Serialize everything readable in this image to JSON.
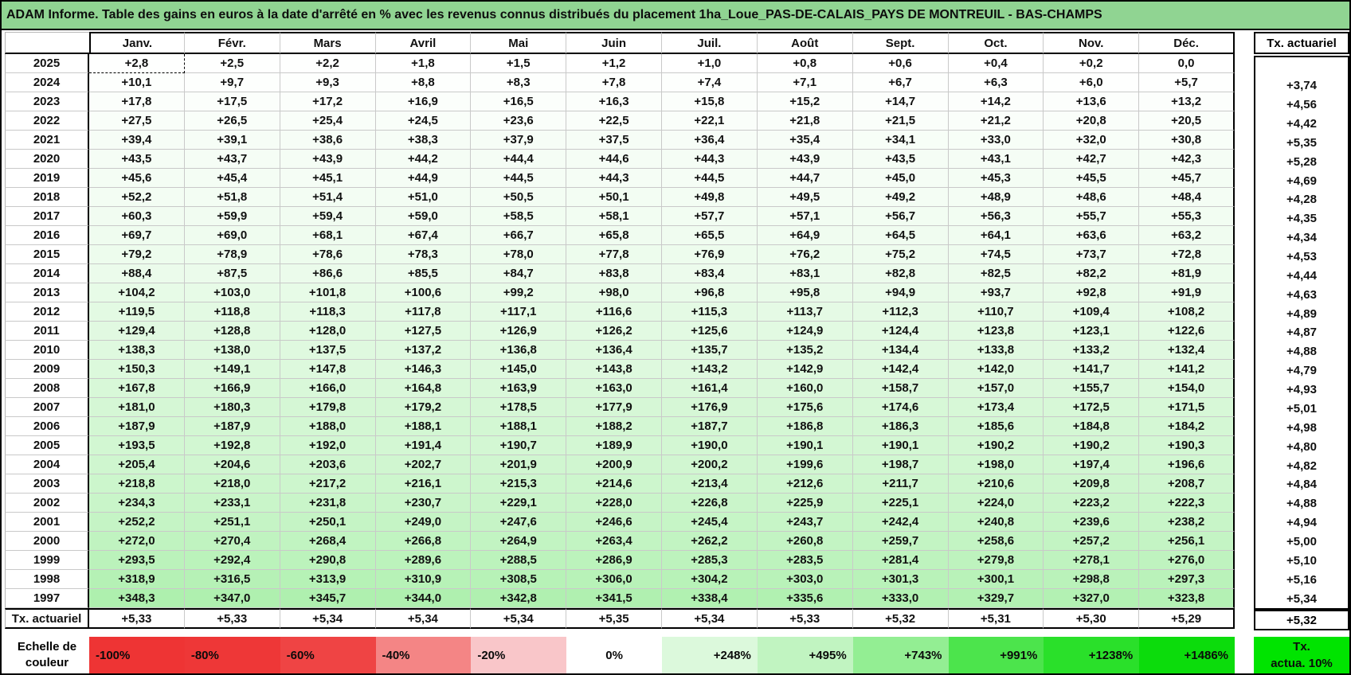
{
  "title": "ADAM Informe. Table des gains en euros à la date d'arrêté en % avec les revenus connus distribués du placement 1ha_Loue_PAS-DE-CALAIS_PAYS DE MONTREUIL - BAS-CHAMPS",
  "colors": {
    "title_bg": "#90d492",
    "grid_line": "#c9c9c9",
    "positive_max_green": "#00d000",
    "scale_red": "#ee3434",
    "tx_green": "#00e400"
  },
  "table": {
    "months": [
      "Janv.",
      "Févr.",
      "Mars",
      "Avril",
      "Mai",
      "Juin",
      "Juil.",
      "Août",
      "Sept.",
      "Oct.",
      "Nov.",
      "Déc."
    ],
    "tx_header": "Tx. actuariel",
    "rows": [
      {
        "year": "2025",
        "values": [
          "+2,8",
          "+2,5",
          "+2,2",
          "+1,8",
          "+1,5",
          "+1,2",
          "+1,0",
          "+0,8",
          "+0,6",
          "+0,4",
          "+0,2",
          "0,0"
        ],
        "tx": ""
      },
      {
        "year": "2024",
        "values": [
          "+10,1",
          "+9,7",
          "+9,3",
          "+8,8",
          "+8,3",
          "+7,8",
          "+7,4",
          "+7,1",
          "+6,7",
          "+6,3",
          "+6,0",
          "+5,7"
        ],
        "tx": "+3,74"
      },
      {
        "year": "2023",
        "values": [
          "+17,8",
          "+17,5",
          "+17,2",
          "+16,9",
          "+16,5",
          "+16,3",
          "+15,8",
          "+15,2",
          "+14,7",
          "+14,2",
          "+13,6",
          "+13,2"
        ],
        "tx": "+4,56"
      },
      {
        "year": "2022",
        "values": [
          "+27,5",
          "+26,5",
          "+25,4",
          "+24,5",
          "+23,6",
          "+22,5",
          "+22,1",
          "+21,8",
          "+21,5",
          "+21,2",
          "+20,8",
          "+20,5"
        ],
        "tx": "+4,42"
      },
      {
        "year": "2021",
        "values": [
          "+39,4",
          "+39,1",
          "+38,6",
          "+38,3",
          "+37,9",
          "+37,5",
          "+36,4",
          "+35,4",
          "+34,1",
          "+33,0",
          "+32,0",
          "+30,8"
        ],
        "tx": "+5,35"
      },
      {
        "year": "2020",
        "values": [
          "+43,5",
          "+43,7",
          "+43,9",
          "+44,2",
          "+44,4",
          "+44,6",
          "+44,3",
          "+43,9",
          "+43,5",
          "+43,1",
          "+42,7",
          "+42,3"
        ],
        "tx": "+5,28"
      },
      {
        "year": "2019",
        "values": [
          "+45,6",
          "+45,4",
          "+45,1",
          "+44,9",
          "+44,5",
          "+44,3",
          "+44,5",
          "+44,7",
          "+45,0",
          "+45,3",
          "+45,5",
          "+45,7"
        ],
        "tx": "+4,69"
      },
      {
        "year": "2018",
        "values": [
          "+52,2",
          "+51,8",
          "+51,4",
          "+51,0",
          "+50,5",
          "+50,1",
          "+49,8",
          "+49,5",
          "+49,2",
          "+48,9",
          "+48,6",
          "+48,4"
        ],
        "tx": "+4,28"
      },
      {
        "year": "2017",
        "values": [
          "+60,3",
          "+59,9",
          "+59,4",
          "+59,0",
          "+58,5",
          "+58,1",
          "+57,7",
          "+57,1",
          "+56,7",
          "+56,3",
          "+55,7",
          "+55,3"
        ],
        "tx": "+4,35"
      },
      {
        "year": "2016",
        "values": [
          "+69,7",
          "+69,0",
          "+68,1",
          "+67,4",
          "+66,7",
          "+65,8",
          "+65,5",
          "+64,9",
          "+64,5",
          "+64,1",
          "+63,6",
          "+63,2"
        ],
        "tx": "+4,34"
      },
      {
        "year": "2015",
        "values": [
          "+79,2",
          "+78,9",
          "+78,6",
          "+78,3",
          "+78,0",
          "+77,8",
          "+76,9",
          "+76,2",
          "+75,2",
          "+74,5",
          "+73,7",
          "+72,8"
        ],
        "tx": "+4,53"
      },
      {
        "year": "2014",
        "values": [
          "+88,4",
          "+87,5",
          "+86,6",
          "+85,5",
          "+84,7",
          "+83,8",
          "+83,4",
          "+83,1",
          "+82,8",
          "+82,5",
          "+82,2",
          "+81,9"
        ],
        "tx": "+4,44"
      },
      {
        "year": "2013",
        "values": [
          "+104,2",
          "+103,0",
          "+101,8",
          "+100,6",
          "+99,2",
          "+98,0",
          "+96,8",
          "+95,8",
          "+94,9",
          "+93,7",
          "+92,8",
          "+91,9"
        ],
        "tx": "+4,63"
      },
      {
        "year": "2012",
        "values": [
          "+119,5",
          "+118,8",
          "+118,3",
          "+117,8",
          "+117,1",
          "+116,6",
          "+115,3",
          "+113,7",
          "+112,3",
          "+110,7",
          "+109,4",
          "+108,2"
        ],
        "tx": "+4,89"
      },
      {
        "year": "2011",
        "values": [
          "+129,4",
          "+128,8",
          "+128,0",
          "+127,5",
          "+126,9",
          "+126,2",
          "+125,6",
          "+124,9",
          "+124,4",
          "+123,8",
          "+123,1",
          "+122,6"
        ],
        "tx": "+4,87"
      },
      {
        "year": "2010",
        "values": [
          "+138,3",
          "+138,0",
          "+137,5",
          "+137,2",
          "+136,8",
          "+136,4",
          "+135,7",
          "+135,2",
          "+134,4",
          "+133,8",
          "+133,2",
          "+132,4"
        ],
        "tx": "+4,88"
      },
      {
        "year": "2009",
        "values": [
          "+150,3",
          "+149,1",
          "+147,8",
          "+146,3",
          "+145,0",
          "+143,8",
          "+143,2",
          "+142,9",
          "+142,4",
          "+142,0",
          "+141,7",
          "+141,2"
        ],
        "tx": "+4,79"
      },
      {
        "year": "2008",
        "values": [
          "+167,8",
          "+166,9",
          "+166,0",
          "+164,8",
          "+163,9",
          "+163,0",
          "+161,4",
          "+160,0",
          "+158,7",
          "+157,0",
          "+155,7",
          "+154,0"
        ],
        "tx": "+4,93"
      },
      {
        "year": "2007",
        "values": [
          "+181,0",
          "+180,3",
          "+179,8",
          "+179,2",
          "+178,5",
          "+177,9",
          "+176,9",
          "+175,6",
          "+174,6",
          "+173,4",
          "+172,5",
          "+171,5"
        ],
        "tx": "+5,01"
      },
      {
        "year": "2006",
        "values": [
          "+187,9",
          "+187,9",
          "+188,0",
          "+188,1",
          "+188,1",
          "+188,2",
          "+187,7",
          "+186,8",
          "+186,3",
          "+185,6",
          "+184,8",
          "+184,2"
        ],
        "tx": "+4,98"
      },
      {
        "year": "2005",
        "values": [
          "+193,5",
          "+192,8",
          "+192,0",
          "+191,4",
          "+190,7",
          "+189,9",
          "+190,0",
          "+190,1",
          "+190,1",
          "+190,2",
          "+190,2",
          "+190,3"
        ],
        "tx": "+4,80"
      },
      {
        "year": "2004",
        "values": [
          "+205,4",
          "+204,6",
          "+203,6",
          "+202,7",
          "+201,9",
          "+200,9",
          "+200,2",
          "+199,6",
          "+198,7",
          "+198,0",
          "+197,4",
          "+196,6"
        ],
        "tx": "+4,82"
      },
      {
        "year": "2003",
        "values": [
          "+218,8",
          "+218,0",
          "+217,2",
          "+216,1",
          "+215,3",
          "+214,6",
          "+213,4",
          "+212,6",
          "+211,7",
          "+210,6",
          "+209,8",
          "+208,7"
        ],
        "tx": "+4,84"
      },
      {
        "year": "2002",
        "values": [
          "+234,3",
          "+233,1",
          "+231,8",
          "+230,7",
          "+229,1",
          "+228,0",
          "+226,8",
          "+225,9",
          "+225,1",
          "+224,0",
          "+223,2",
          "+222,3"
        ],
        "tx": "+4,88"
      },
      {
        "year": "2001",
        "values": [
          "+252,2",
          "+251,1",
          "+250,1",
          "+249,0",
          "+247,6",
          "+246,6",
          "+245,4",
          "+243,7",
          "+242,4",
          "+240,8",
          "+239,6",
          "+238,2"
        ],
        "tx": "+4,94"
      },
      {
        "year": "2000",
        "values": [
          "+272,0",
          "+270,4",
          "+268,4",
          "+266,8",
          "+264,9",
          "+263,4",
          "+262,2",
          "+260,8",
          "+259,7",
          "+258,6",
          "+257,2",
          "+256,1"
        ],
        "tx": "+5,00"
      },
      {
        "year": "1999",
        "values": [
          "+293,5",
          "+292,4",
          "+290,8",
          "+289,6",
          "+288,5",
          "+286,9",
          "+285,3",
          "+283,5",
          "+281,4",
          "+279,8",
          "+278,1",
          "+276,0"
        ],
        "tx": "+5,10"
      },
      {
        "year": "1998",
        "values": [
          "+318,9",
          "+316,5",
          "+313,9",
          "+310,9",
          "+308,5",
          "+306,0",
          "+304,2",
          "+303,0",
          "+301,3",
          "+300,1",
          "+298,8",
          "+297,3"
        ],
        "tx": "+5,16"
      },
      {
        "year": "1997",
        "values": [
          "+348,3",
          "+347,0",
          "+345,7",
          "+344,0",
          "+342,8",
          "+341,5",
          "+338,4",
          "+335,6",
          "+333,0",
          "+329,7",
          "+327,0",
          "+323,8"
        ],
        "tx": "+5,34"
      }
    ],
    "footer": {
      "label": "Tx. actuariel",
      "values": [
        "+5,33",
        "+5,33",
        "+5,34",
        "+5,34",
        "+5,34",
        "+5,35",
        "+5,34",
        "+5,33",
        "+5,32",
        "+5,31",
        "+5,30",
        "+5,29"
      ],
      "tx": "+5,32"
    }
  },
  "scale": {
    "label_line1": "Echelle de",
    "label_line2": "couleur",
    "cells": [
      {
        "label": "-100%",
        "color": "#ee3434",
        "align": "left"
      },
      {
        "label": "-80%",
        "color": "#ee3737",
        "align": "left"
      },
      {
        "label": "-60%",
        "color": "#ef4444",
        "align": "left"
      },
      {
        "label": "-40%",
        "color": "#f48585",
        "align": "left"
      },
      {
        "label": "-20%",
        "color": "#f9c6c9",
        "align": "left"
      },
      {
        "label": "0%",
        "color": "#ffffff",
        "align": "center"
      },
      {
        "label": "+248%",
        "color": "#dcf9dc",
        "align": "right"
      },
      {
        "label": "+495%",
        "color": "#c1f4c1",
        "align": "right"
      },
      {
        "label": "+743%",
        "color": "#93ee93",
        "align": "right"
      },
      {
        "label": "+991%",
        "color": "#4ce44c",
        "align": "right"
      },
      {
        "label": "+1238%",
        "color": "#2ae02a",
        "align": "right"
      },
      {
        "label": "+1486%",
        "color": "#0cdc0c",
        "align": "right"
      }
    ],
    "tx": {
      "line1": "Tx.",
      "line2": "actua. 10%",
      "color": "#00e400"
    }
  }
}
